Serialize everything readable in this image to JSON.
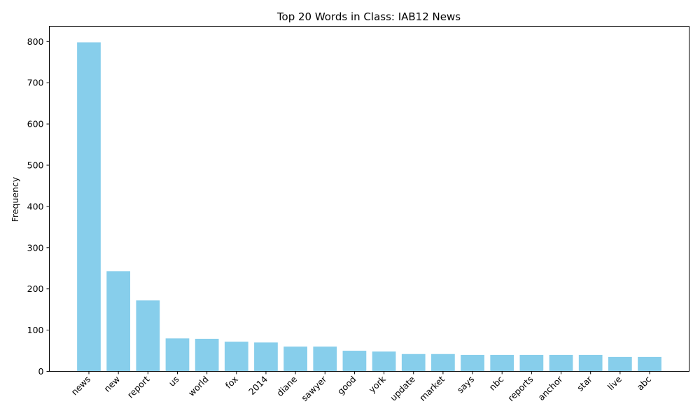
{
  "chart_data": {
    "type": "bar",
    "title": "Top 20 Words in Class: IAB12 News",
    "xlabel": "",
    "ylabel": "Frequency",
    "categories": [
      "news",
      "new",
      "report",
      "us",
      "world",
      "fox",
      "2014",
      "diane",
      "sawyer",
      "good",
      "york",
      "update",
      "market",
      "says",
      "nbc",
      "reports",
      "anchor",
      "star",
      "live",
      "abc"
    ],
    "values": [
      798,
      243,
      172,
      80,
      79,
      72,
      70,
      60,
      60,
      50,
      48,
      42,
      42,
      40,
      40,
      40,
      40,
      40,
      35,
      35
    ],
    "ylim": [
      0,
      837
    ],
    "yticks": [
      0,
      100,
      200,
      300,
      400,
      500,
      600,
      700,
      800
    ],
    "bar_color": "#87ceeb",
    "grid": false,
    "legend": "none"
  }
}
